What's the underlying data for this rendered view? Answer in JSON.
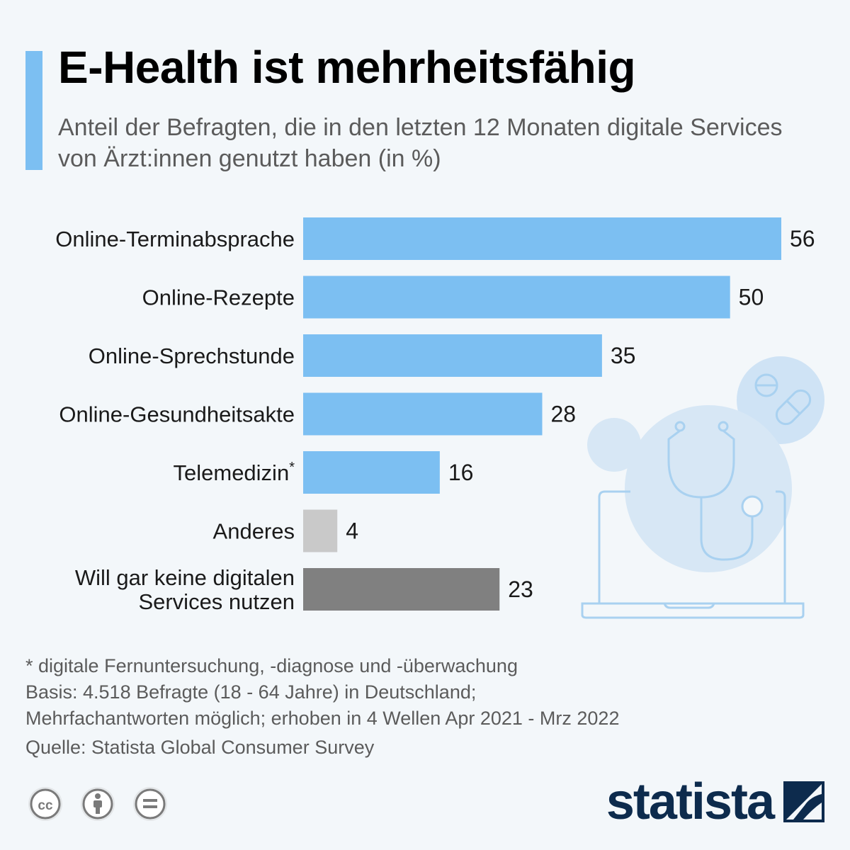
{
  "header": {
    "title": "E-Health ist mehrheitsfähig",
    "subtitle": "Anteil der Befragten, die in den letzten 12 Monaten digitale Services von Ärzt:innen genutzt haben (in %)",
    "accent_color": "#7cbff2"
  },
  "chart_data": {
    "type": "bar",
    "orientation": "horizontal",
    "title": "E-Health ist mehrheitsfähig",
    "subtitle": "Anteil der Befragten, die in den letzten 12 Monaten digitale Services von Ärzt:innen genutzt haben (in %)",
    "xlabel": "",
    "ylabel": "",
    "xlim": [
      0,
      56
    ],
    "grid": false,
    "legend": "none",
    "data_labels": true,
    "categories": [
      "Online-Terminabsprache",
      "Online-Rezepte",
      "Online-Sprechstunde",
      "Online-Gesundheitsakte",
      "Telemedizin*",
      "Anderes",
      "Will gar keine digitalen Services nutzen"
    ],
    "category_lines": [
      [
        "Online-Terminabsprache"
      ],
      [
        "Online-Rezepte"
      ],
      [
        "Online-Sprechstunde"
      ],
      [
        "Online-Gesundheitsakte"
      ],
      [
        "Telemedizin*"
      ],
      [
        "Anderes"
      ],
      [
        "Will gar keine digitalen",
        "Services nutzen"
      ]
    ],
    "values": [
      56,
      50,
      35,
      28,
      16,
      4,
      23
    ],
    "bar_colors": [
      "#7cbff2",
      "#7cbff2",
      "#7cbff2",
      "#7cbff2",
      "#7cbff2",
      "#c9c9c9",
      "#808080"
    ]
  },
  "illustration": {
    "icons": [
      "stethoscope-icon",
      "laptop-icon",
      "pills-icon"
    ],
    "line_color": "#a9d1f0",
    "circle_color": "#cfe3f5"
  },
  "notes": {
    "footnote": "* digitale Fernuntersuchung, -diagnose und -überwachung",
    "basis_line1": "Basis: 4.518 Befragte (18 - 64 Jahre) in Deutschland;",
    "basis_line2": "Mehrfachantworten möglich; erhoben in 4 Wellen Apr 2021 - Mrz 2022",
    "source": "Quelle: Statista Global Consumer Survey"
  },
  "license_icons": [
    "cc-icon",
    "by-icon",
    "nd-icon"
  ],
  "brand": {
    "name": "statista",
    "color": "#0d2b4d"
  }
}
